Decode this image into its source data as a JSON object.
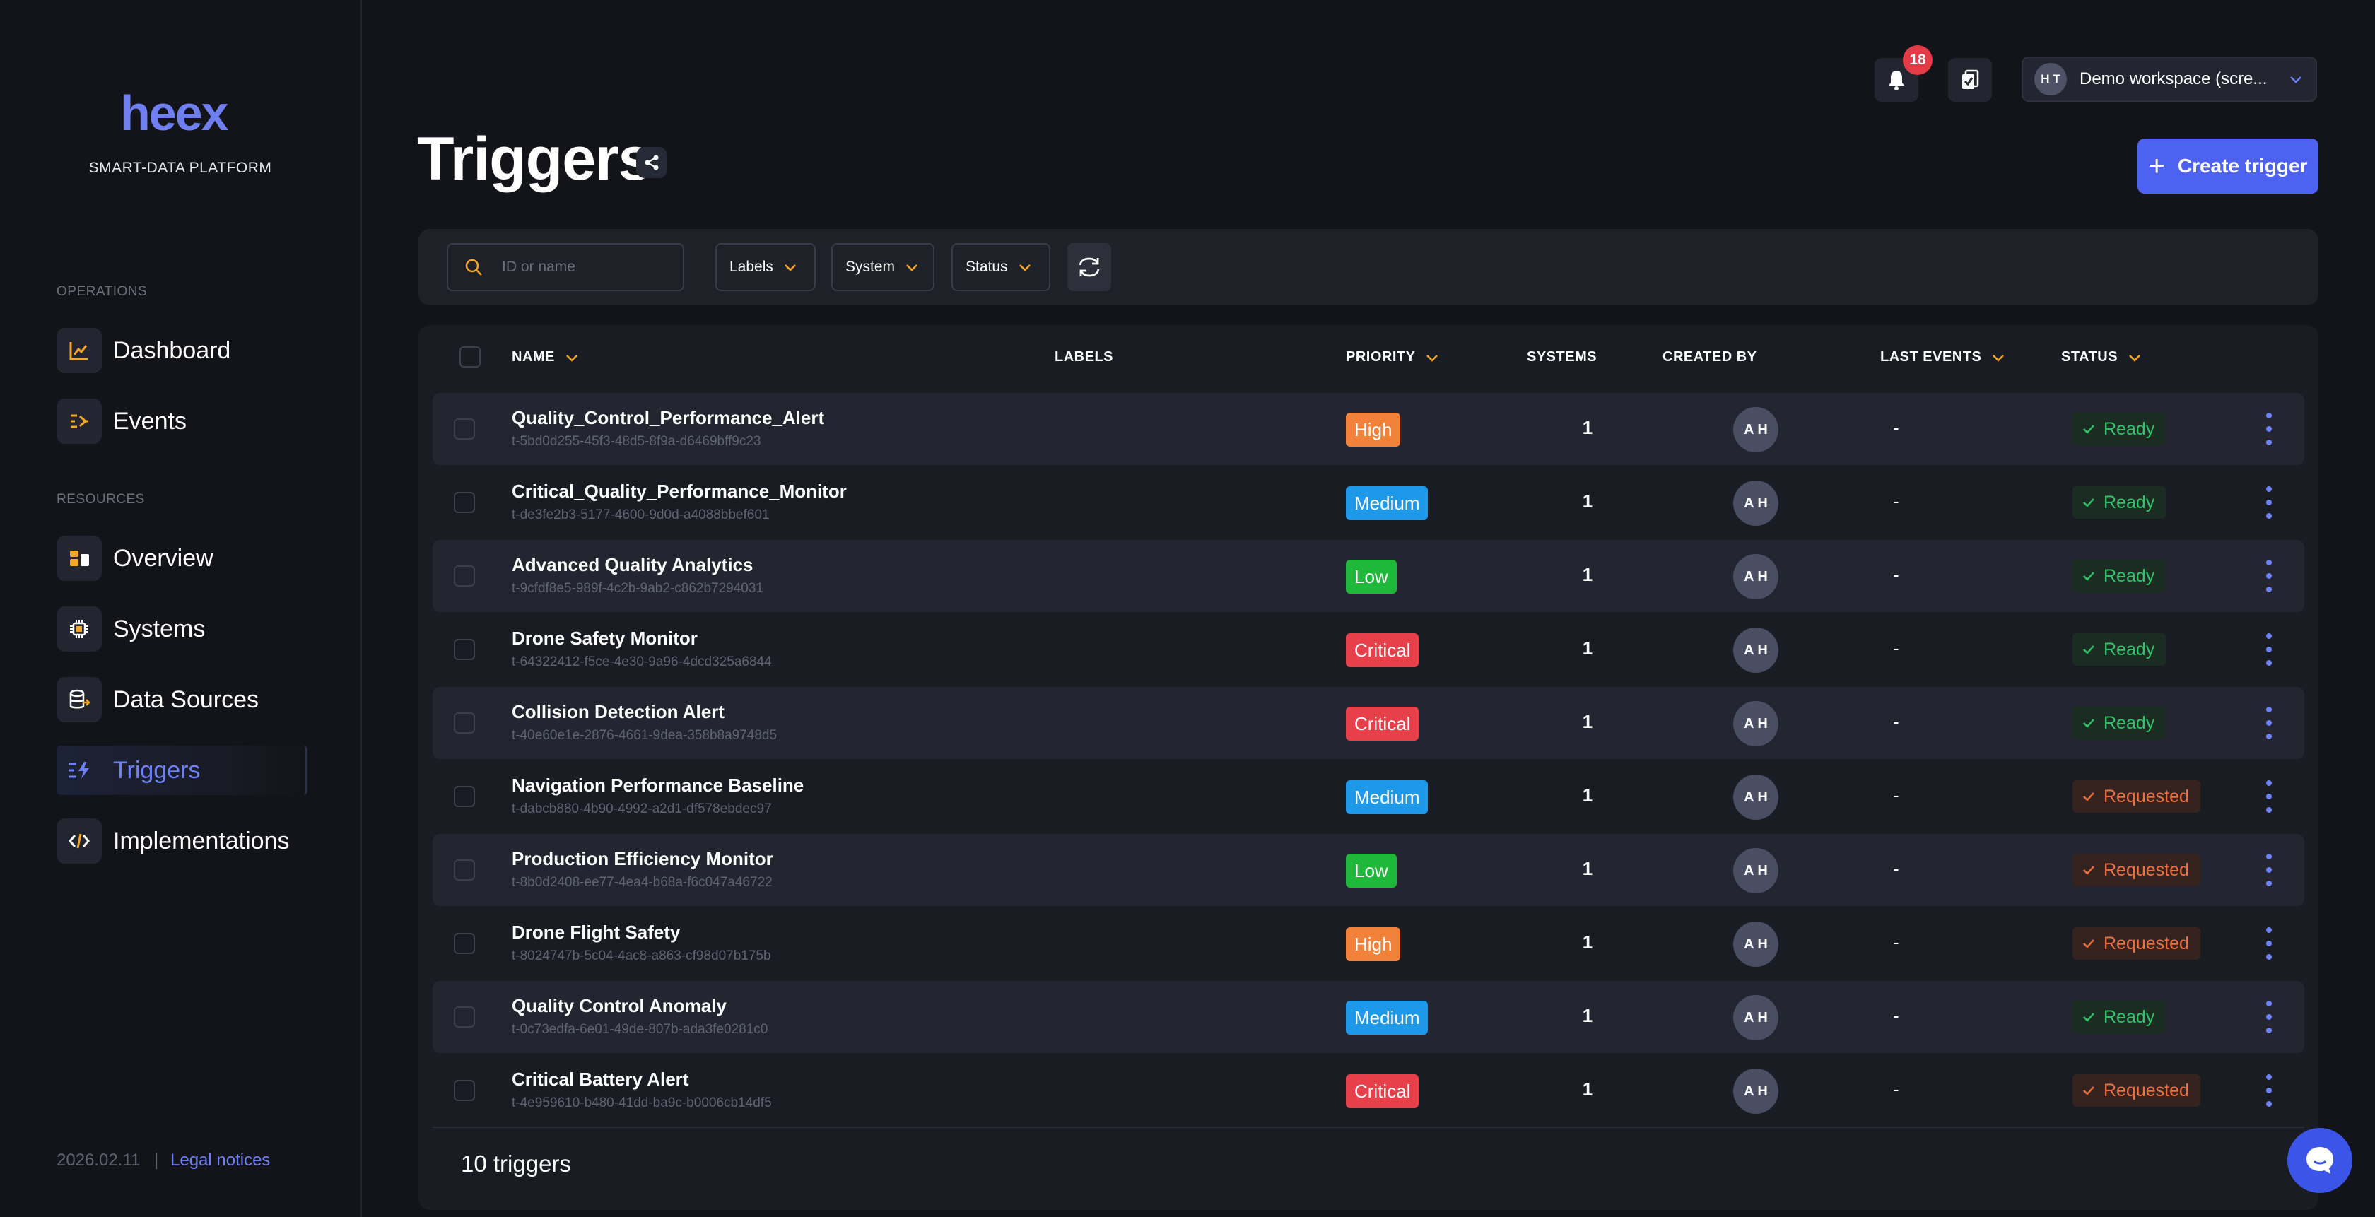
{
  "brand": {
    "logo": "heex",
    "subtitle": "SMART-DATA PLATFORM"
  },
  "sidebar": {
    "sections": [
      {
        "label": "OPERATIONS",
        "items": [
          {
            "label": "Dashboard",
            "icon": "chart-line-icon"
          },
          {
            "label": "Events",
            "icon": "events-icon"
          }
        ]
      },
      {
        "label": "RESOURCES",
        "items": [
          {
            "label": "Overview",
            "icon": "overview-icon"
          },
          {
            "label": "Systems",
            "icon": "chip-icon"
          },
          {
            "label": "Data Sources",
            "icon": "database-icon"
          },
          {
            "label": "Triggers",
            "icon": "trigger-icon",
            "active": true
          },
          {
            "label": "Implementations",
            "icon": "code-icon"
          }
        ]
      }
    ],
    "footer": {
      "date": "2026.02.11",
      "separator": "|",
      "legal": "Legal notices"
    }
  },
  "topbar": {
    "notifications_count": "18",
    "workspace_initials": "H T",
    "workspace_name": "Demo workspace (scre..."
  },
  "page": {
    "title": "Triggers",
    "create_label": "Create trigger"
  },
  "filters": {
    "search_placeholder": "ID or name",
    "labels": "Labels",
    "system": "System",
    "status": "Status"
  },
  "table": {
    "columns": {
      "name": "NAME",
      "labels": "LABELS",
      "priority": "PRIORITY",
      "systems": "SYSTEMS",
      "created_by": "CREATED BY",
      "last_events": "LAST EVENTS",
      "status": "STATUS"
    },
    "rows": [
      {
        "name": "Quality_Control_Performance_Alert",
        "id": "t-5bd0d255-45f3-48d5-8f9a-d6469bff9c23",
        "priority": "High",
        "systems": "1",
        "created_by": "A H",
        "last_events": "-",
        "status": "Ready"
      },
      {
        "name": "Critical_Quality_Performance_Monitor",
        "id": "t-de3fe2b3-5177-4600-9d0d-a4088bbef601",
        "priority": "Medium",
        "systems": "1",
        "created_by": "A H",
        "last_events": "-",
        "status": "Ready"
      },
      {
        "name": "Advanced Quality Analytics",
        "id": "t-9cfdf8e5-989f-4c2b-9ab2-c862b7294031",
        "priority": "Low",
        "systems": "1",
        "created_by": "A H",
        "last_events": "-",
        "status": "Ready"
      },
      {
        "name": "Drone Safety Monitor",
        "id": "t-64322412-f5ce-4e30-9a96-4dcd325a6844",
        "priority": "Critical",
        "systems": "1",
        "created_by": "A H",
        "last_events": "-",
        "status": "Ready"
      },
      {
        "name": "Collision Detection Alert",
        "id": "t-40e60e1e-2876-4661-9dea-358b8a9748d5",
        "priority": "Critical",
        "systems": "1",
        "created_by": "A H",
        "last_events": "-",
        "status": "Ready"
      },
      {
        "name": "Navigation Performance Baseline",
        "id": "t-dabcb880-4b90-4992-a2d1-df578ebdec97",
        "priority": "Medium",
        "systems": "1",
        "created_by": "A H",
        "last_events": "-",
        "status": "Requested"
      },
      {
        "name": "Production Efficiency Monitor",
        "id": "t-8b0d2408-ee77-4ea4-b68a-f6c047a46722",
        "priority": "Low",
        "systems": "1",
        "created_by": "A H",
        "last_events": "-",
        "status": "Requested"
      },
      {
        "name": "Drone Flight Safety",
        "id": "t-8024747b-5c04-4ac8-a863-cf98d07b175b",
        "priority": "High",
        "systems": "1",
        "created_by": "A H",
        "last_events": "-",
        "status": "Requested"
      },
      {
        "name": "Quality Control Anomaly",
        "id": "t-0c73edfa-6e01-49de-807b-ada3fe0281c0",
        "priority": "Medium",
        "systems": "1",
        "created_by": "A H",
        "last_events": "-",
        "status": "Ready"
      },
      {
        "name": "Critical Battery Alert",
        "id": "t-4e959610-b480-41dd-ba9c-b0006cb14df5",
        "priority": "Critical",
        "systems": "1",
        "created_by": "A H",
        "last_events": "-",
        "status": "Requested"
      }
    ],
    "count_label": "10 triggers"
  },
  "colors": {
    "accent": "#4d62f0",
    "priority": {
      "High": "#f2823a",
      "Medium": "#1e98e8",
      "Low": "#1fb83a",
      "Critical": "#e8404a"
    }
  }
}
